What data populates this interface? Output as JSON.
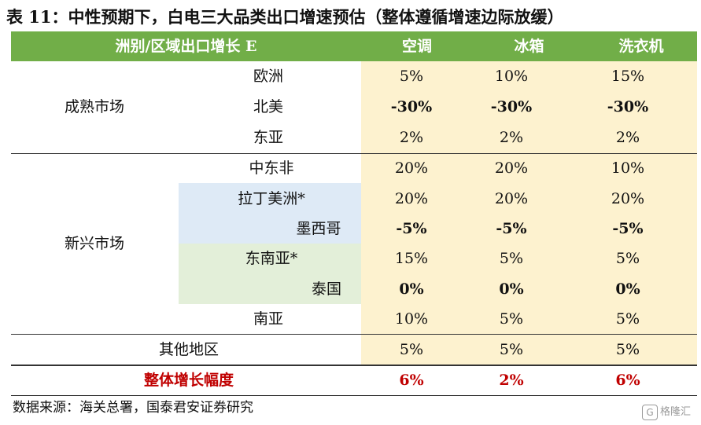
{
  "title": "表 11：中性预期下，白电三大品类出口增速预估（整体遵循增速边际放缓）",
  "header": {
    "region_col": "洲别/区域出口增长 E",
    "cols": [
      "空调",
      "冰箱",
      "洗衣机"
    ]
  },
  "groups": {
    "mature": "成熟市场",
    "emerging": "新兴市场"
  },
  "rows": [
    {
      "label": "欧洲",
      "values": [
        "5%",
        "10%",
        "15%"
      ]
    },
    {
      "label": "北美",
      "values": [
        "-30%",
        "-30%",
        "-30%"
      ]
    },
    {
      "label": "东亚",
      "values": [
        "2%",
        "2%",
        "2%"
      ]
    },
    {
      "label": "中东非",
      "values": [
        "20%",
        "20%",
        "10%"
      ]
    },
    {
      "label": "拉丁美洲*",
      "values": [
        "20%",
        "20%",
        "20%"
      ]
    },
    {
      "label": "墨西哥",
      "values": [
        "-5%",
        "-5%",
        "-5%"
      ]
    },
    {
      "label": "东南亚*",
      "values": [
        "15%",
        "5%",
        "5%"
      ]
    },
    {
      "label": "泰国",
      "values": [
        "0%",
        "0%",
        "0%"
      ]
    },
    {
      "label": "南亚",
      "values": [
        "10%",
        "5%",
        "5%"
      ]
    },
    {
      "label": "其他地区",
      "values": [
        "5%",
        "5%",
        "5%"
      ]
    }
  ],
  "total": {
    "label": "整体增长幅度",
    "values": [
      "6%",
      "2%",
      "6%"
    ]
  },
  "source": "数据来源：海关总署，国泰君安证券研究",
  "logo_text": "格隆汇",
  "colors": {
    "header_green": "#71ae48",
    "cream": "#fdf2cf",
    "light_blue": "#deeaf6",
    "light_green": "#e3efd9",
    "total_red": "#c00000"
  }
}
